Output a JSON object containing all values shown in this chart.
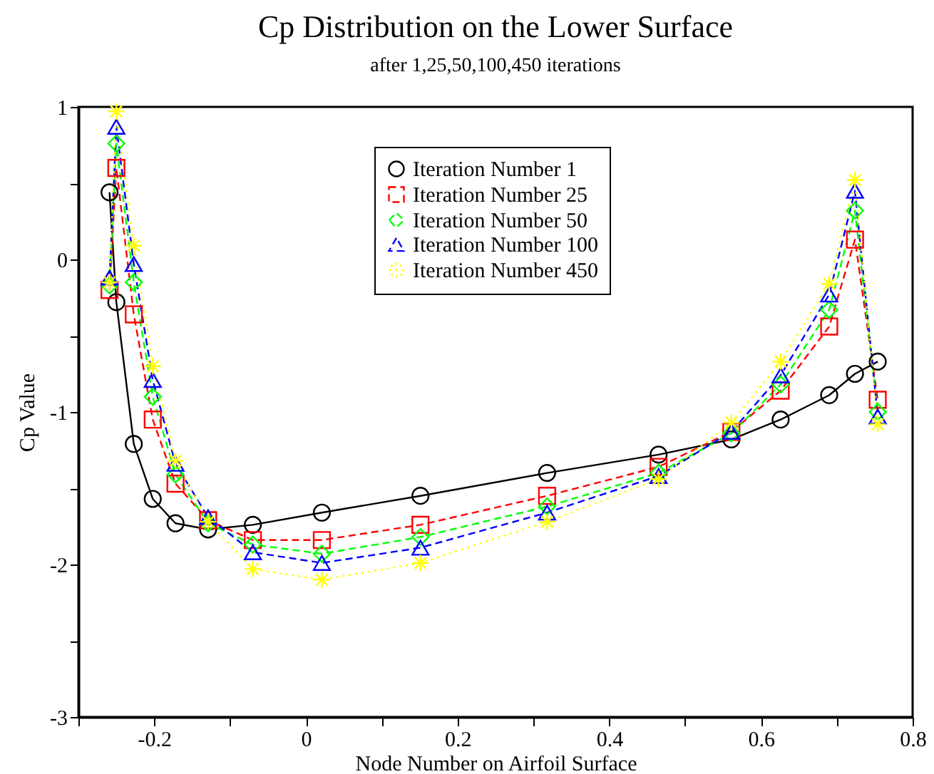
{
  "chart_data": {
    "type": "line",
    "title": "Cp Distribution on the Lower Surface",
    "subtitle": "after 1,25,50,100,450 iterations",
    "xlabel": "Node Number on Airfoil Surface",
    "ylabel": "Cp Value",
    "x": [
      -0.259,
      -0.25,
      -0.227,
      -0.202,
      -0.172,
      -0.129,
      -0.07,
      0.021,
      0.151,
      0.318,
      0.465,
      0.561,
      0.626,
      0.69,
      0.724,
      0.754
    ],
    "xlim": [
      -0.3,
      0.8
    ],
    "xticks": [
      {
        "value": -0.3,
        "label": null
      },
      -0.2,
      {
        "value": -0.1,
        "label": null
      },
      0,
      {
        "value": 0.1,
        "label": null
      },
      0.2,
      {
        "value": 0.3,
        "label": null
      },
      0.4,
      {
        "value": 0.5,
        "label": null
      },
      0.6,
      {
        "value": 0.7,
        "label": null
      },
      0.8
    ],
    "ylim": [
      -3,
      1
    ],
    "yticks": [
      -3,
      {
        "value": -2.5,
        "label": null
      },
      -2,
      {
        "value": -1.5,
        "label": null
      },
      -1,
      {
        "value": -0.5,
        "label": null
      },
      0,
      {
        "value": 0.5,
        "label": null
      },
      1
    ],
    "grid": false,
    "legend": "top",
    "series": [
      {
        "name": "Iteration Number 1",
        "color": "#000000",
        "marker": "circle",
        "line_style": "solid",
        "values": [
          0.44,
          -0.28,
          -1.21,
          -1.57,
          -1.73,
          -1.77,
          -1.74,
          -1.66,
          -1.55,
          -1.4,
          -1.28,
          -1.18,
          -1.05,
          -0.89,
          -0.75,
          -0.67
        ]
      },
      {
        "name": "Iteration Number 25",
        "color": "#ff0000",
        "marker": "square",
        "line_style": "dashed",
        "values": [
          -0.2,
          0.6,
          -0.36,
          -1.05,
          -1.47,
          -1.71,
          -1.84,
          -1.84,
          -1.74,
          -1.55,
          -1.36,
          -1.13,
          -0.86,
          -0.44,
          0.13,
          -0.92
        ]
      },
      {
        "name": "Iteration Number 50",
        "color": "#00ff00",
        "marker": "diamond",
        "line_style": "dashed",
        "values": [
          -0.17,
          0.76,
          -0.15,
          -0.9,
          -1.41,
          -1.73,
          -1.87,
          -1.93,
          -1.82,
          -1.62,
          -1.4,
          -1.14,
          -0.82,
          -0.33,
          0.32,
          -1.0
        ]
      },
      {
        "name": "Iteration Number 100",
        "color": "#0000ff",
        "marker": "triangle",
        "line_style": "dashed",
        "values": [
          -0.12,
          0.87,
          -0.03,
          -0.79,
          -1.34,
          -1.69,
          -1.92,
          -1.99,
          -1.89,
          -1.66,
          -1.42,
          -1.13,
          -0.76,
          -0.23,
          0.45,
          -1.03
        ]
      },
      {
        "name": "Iteration Number 450",
        "color": "#ffff00",
        "marker": "cross",
        "line_style": "dotted",
        "values": [
          -0.15,
          0.97,
          0.09,
          -0.7,
          -1.32,
          -1.72,
          -2.03,
          -2.1,
          -1.99,
          -1.72,
          -1.44,
          -1.07,
          -0.67,
          -0.16,
          0.52,
          -1.08
        ]
      }
    ]
  }
}
